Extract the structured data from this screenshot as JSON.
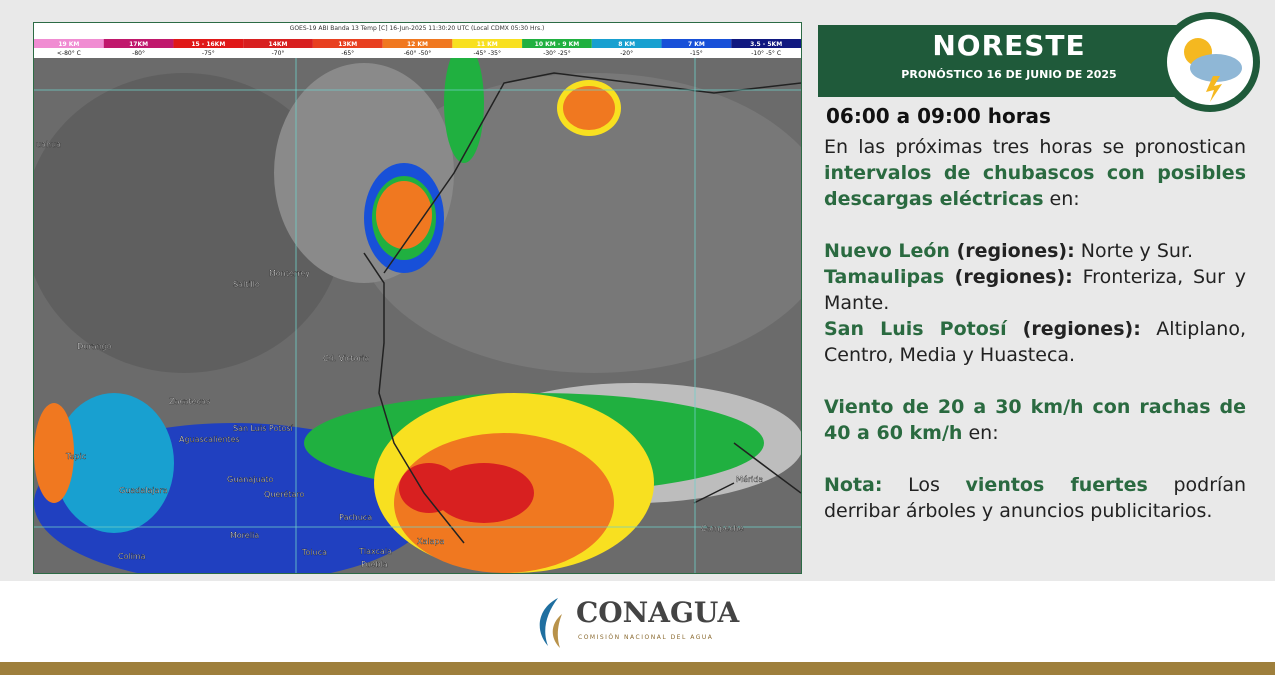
{
  "map": {
    "header": "GOES-19 ABI Banda 13 Temp [C] 16-Jun-2025 11:30:20 UTC (Local CDMX  05:30 Hrs.)",
    "legend": [
      {
        "height": "19 KM",
        "temp": "<-80° C",
        "color": "#f08cd2"
      },
      {
        "height": "17KM",
        "temp": "-80°",
        "color": "#c0186c"
      },
      {
        "height": "15 - 16KM",
        "temp": "-75°",
        "color": "#e01818"
      },
      {
        "height": "14KM",
        "temp": "-70°",
        "color": "#d82020"
      },
      {
        "height": "13KM",
        "temp": "-65°",
        "color": "#e84020"
      },
      {
        "height": "12 KM",
        "temp": "-60° -50°",
        "color": "#f07820"
      },
      {
        "height": "11 KM",
        "temp": "-45° -35°",
        "color": "#f8e020"
      },
      {
        "height": "10 KM - 9 KM",
        "temp": "-30° -25°",
        "color": "#20b040"
      },
      {
        "height": "8 KM",
        "temp": "-20°",
        "color": "#18a0d0"
      },
      {
        "height": "7 KM",
        "temp": "-15°",
        "color": "#1850d8"
      },
      {
        "height": "3.5 - 5KM",
        "temp": "-10°  -5° C",
        "color": "#101880"
      }
    ],
    "cities": [
      "uahua",
      "Monterrey",
      "Saltillo",
      "Durango",
      "Cd. Victoria",
      "Zacatecas",
      "San Luis Potosí",
      "Aguascalientes",
      "Tepic",
      "Guadalajara",
      "Guanajuato",
      "Querétaro",
      "Pachuca",
      "Morelia",
      "Colima",
      "Toluca",
      "Tlaxcala",
      "Xalapa",
      "Puebla",
      "Mérida",
      "Campeche"
    ]
  },
  "panel": {
    "title": "NORESTE",
    "subtitle": "PRONÓSTICO 16 DE JUNIO DE 2025",
    "period": "06:00 a 09:00 horas",
    "paragraphs": [
      [
        {
          "text": "En las próximas tres horas se pronostican ",
          "style": "plain"
        },
        {
          "text": "intervalos de chubascos con posibles descargas eléctricas",
          "style": "green"
        },
        {
          "text": " en:",
          "style": "plain"
        }
      ],
      [
        {
          "text": "Nuevo León",
          "style": "green"
        },
        {
          "text": " (regiones):",
          "style": "bold"
        },
        {
          "text": " Norte y Sur.",
          "style": "plain"
        }
      ],
      [
        {
          "text": "Tamaulipas",
          "style": "green"
        },
        {
          "text": " (regiones):",
          "style": "bold"
        },
        {
          "text": " Fronteriza, Sur y Mante.",
          "style": "plain"
        }
      ],
      [
        {
          "text": "San Luis Potosí",
          "style": "green"
        },
        {
          "text": " (regiones):",
          "style": "bold"
        },
        {
          "text": " Altiplano, Centro, Media y Huasteca.",
          "style": "plain"
        }
      ],
      [
        {
          "text": "Viento de 20 a 30 km/h con rachas de 40 a 60 km/h",
          "style": "green"
        },
        {
          "text": " en:",
          "style": "plain"
        }
      ],
      [
        {
          "text": "Nota:",
          "style": "green"
        },
        {
          "text": " Los ",
          "style": "plain"
        },
        {
          "text": "vientos fuertes",
          "style": "green"
        },
        {
          "text": " podrían derribar árboles y anuncios publicitarios.",
          "style": "plain"
        }
      ]
    ]
  },
  "footer": {
    "logo": "CONAGUA",
    "logo_subtitle": "COMISIÓN NACIONAL DEL AGUA"
  }
}
